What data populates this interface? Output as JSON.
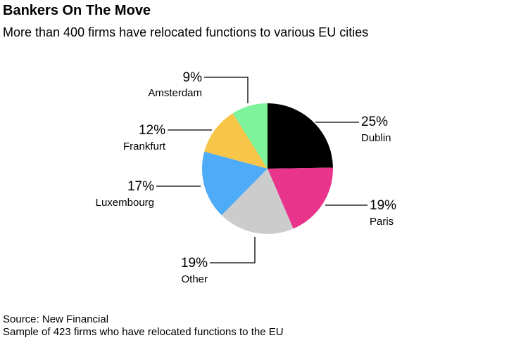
{
  "chart_data": {
    "type": "pie",
    "title": "Bankers On The Move",
    "subtitle": "More than 400 firms have relocated functions to various EU cities",
    "slices": [
      {
        "label": "Dublin",
        "value": 25,
        "value_label": "25%",
        "color": "#000000"
      },
      {
        "label": "Paris",
        "value": 19,
        "value_label": "19%",
        "color": "#E8348B"
      },
      {
        "label": "Other",
        "value": 19,
        "value_label": "19%",
        "color": "#CCCCCC"
      },
      {
        "label": "Luxembourg",
        "value": 17,
        "value_label": "17%",
        "color": "#4DABF7"
      },
      {
        "label": "Frankfurt",
        "value": 12,
        "value_label": "12%",
        "color": "#F7C548"
      },
      {
        "label": "Amsterdam",
        "value": 9,
        "value_label": "9%",
        "color": "#7FF29C"
      }
    ],
    "start_angle": "12 o'clock",
    "direction": "clockwise"
  },
  "footer": {
    "source": "Source: New Financial",
    "note": "Sample of 423 firms who have relocated functions to the EU"
  }
}
